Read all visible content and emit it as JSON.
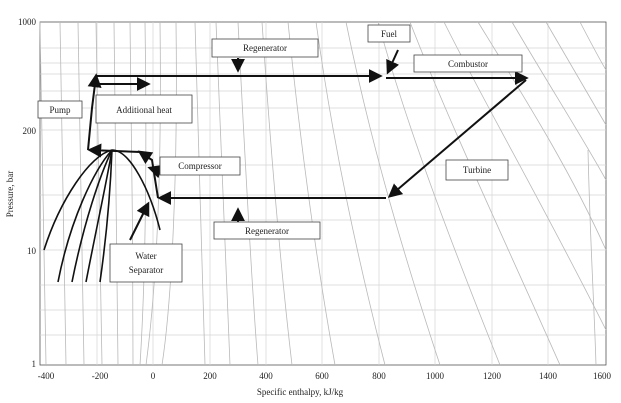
{
  "diagram": {
    "y_axis_label": "Pressure, bar",
    "x_axis_label": "Specific enthalpy, kJ/kg",
    "x_ticks": [
      "-400",
      "-200",
      "0",
      "200",
      "400",
      "600",
      "800",
      "1000",
      "1200",
      "1400",
      "1600"
    ],
    "y_ticks": [
      "1000",
      "200",
      "10",
      "1"
    ],
    "boxes": {
      "regenerator_top": "Regenerator",
      "fuel": "Fuel",
      "combustor": "Combustor",
      "pump": "Pump",
      "additional_heat": "Additional heat",
      "compressor": "Compressor",
      "turbine": "Turbine",
      "regenerator_bottom": "Regenerator",
      "water_separator_line1": "Water",
      "water_separator_line2": "Separator"
    }
  },
  "colors": {
    "flow": "#111111",
    "isolines": "#b9b9b9",
    "grid": "#d4d4d4"
  }
}
